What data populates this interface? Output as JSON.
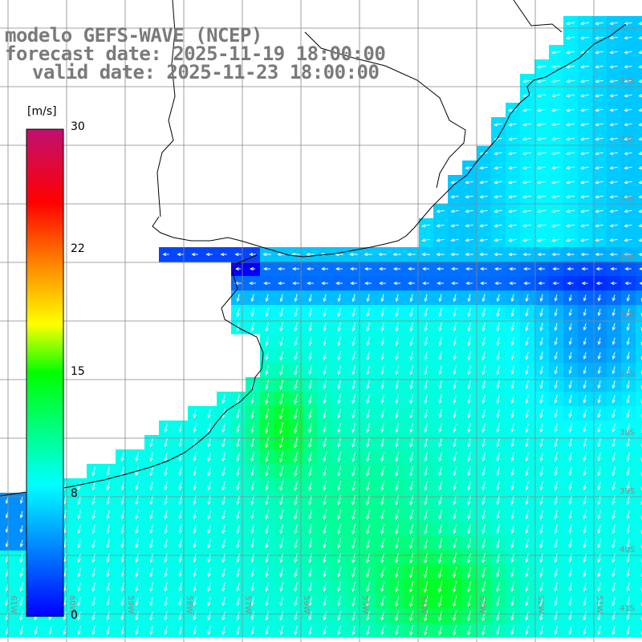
{
  "header": {
    "title": "modelo GEFS-WAVE (NCEP)",
    "forecast": "forecast date: 2025-11-19 18:00:00",
    "valid": "valid date: 2025-11-23 18:00:00"
  },
  "colorbar": {
    "unit": "[m/s]",
    "min": 0,
    "max": 30,
    "ticks": [
      "30",
      "22",
      "15",
      "8",
      "0"
    ],
    "tick_values": [
      30,
      22,
      15,
      8,
      0
    ]
  },
  "lat_labels": [
    "32S",
    "33S",
    "34S",
    "35S",
    "36S",
    "37S",
    "38S",
    "39S",
    "40S",
    "41S"
  ],
  "lon_labels": [
    "61W",
    "60W",
    "59W",
    "58W",
    "57W",
    "56W",
    "55W",
    "54W",
    "53W",
    "52W",
    "51W"
  ],
  "colors": {
    "land": "#ffffff",
    "coast": "#000000",
    "grid": "#888888",
    "arrow": "#ffffff",
    "header_text": "#7a7a7a"
  }
}
